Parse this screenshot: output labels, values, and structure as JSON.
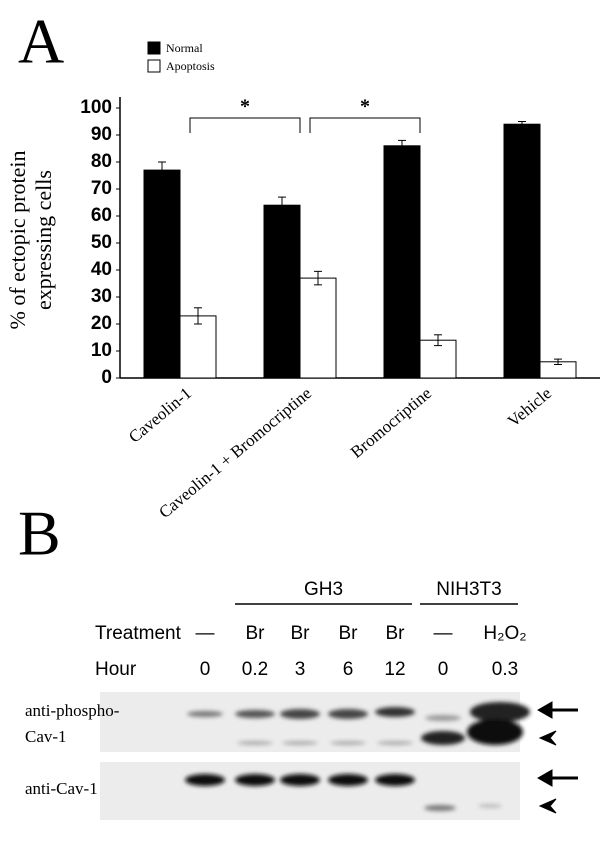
{
  "chart_data": {
    "type": "bar",
    "panel": "A",
    "y_label": [
      "% of ectopic protein",
      "expressing cells"
    ],
    "categories": [
      "Caveolin-1",
      "Caveolin-1 + Bromocriptine",
      "Bromocriptine",
      "Vehicle"
    ],
    "series": [
      {
        "name": "Normal",
        "color": "#000000",
        "values": [
          77,
          64,
          86,
          94
        ],
        "errors": [
          3,
          3,
          2,
          1
        ]
      },
      {
        "name": "Apoptosis",
        "color": "#ffffff",
        "values": [
          23,
          37,
          14,
          6
        ],
        "errors": [
          3,
          2.5,
          2,
          1
        ]
      }
    ],
    "annotations": [
      "*",
      "*"
    ],
    "ylim": [
      0,
      100
    ],
    "yticks": [
      0,
      10,
      20,
      30,
      40,
      50,
      60,
      70,
      80,
      90,
      100
    ],
    "grid": false
  },
  "panel_b": {
    "letter": "B",
    "groups": [
      "GH3",
      "NIH3T3"
    ],
    "treatment_label": "Treatment",
    "treatments": [
      "—",
      "Br",
      "Br",
      "Br",
      "Br",
      "—",
      "H₂O₂"
    ],
    "hour_label": "Hour",
    "hours": [
      "0",
      "0.2",
      "3",
      "6",
      "12",
      "0",
      "0.3"
    ],
    "blots": [
      [
        "anti-phospho-",
        "Cav-1"
      ],
      [
        "anti-Cav-1"
      ]
    ]
  }
}
